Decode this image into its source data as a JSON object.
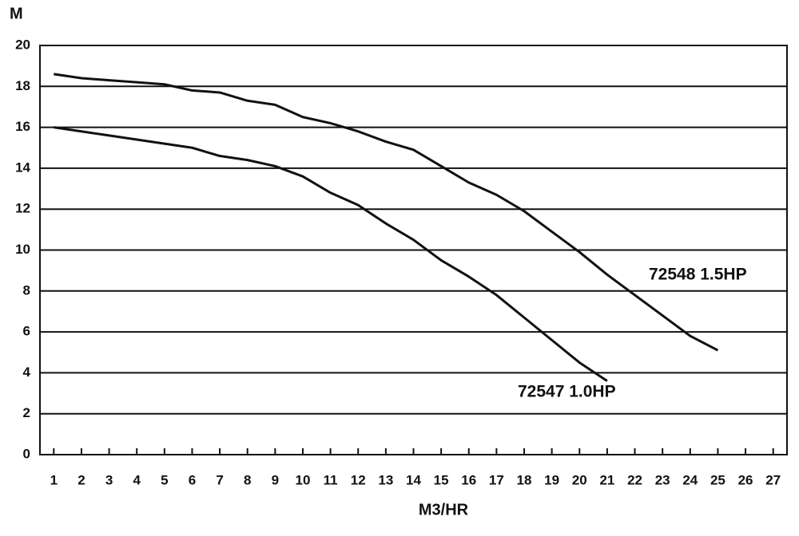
{
  "chart_data": {
    "type": "line",
    "y_label": "M",
    "x_label": "M3/HR",
    "x": [
      1,
      2,
      3,
      4,
      5,
      6,
      7,
      8,
      9,
      10,
      11,
      12,
      13,
      14,
      15,
      16,
      17,
      18,
      19,
      20,
      21,
      22,
      23,
      24,
      25
    ],
    "series": [
      {
        "name": "72548 1.5HP",
        "color": "#111111",
        "values": [
          18.6,
          18.4,
          18.3,
          18.2,
          18.1,
          17.8,
          17.7,
          17.3,
          17.1,
          16.5,
          16.2,
          15.8,
          15.3,
          14.9,
          14.1,
          13.3,
          12.7,
          11.9,
          10.9,
          9.9,
          8.8,
          7.8,
          6.8,
          5.8,
          5.1
        ]
      },
      {
        "name": "72547 1.0HP",
        "color": "#111111",
        "values": [
          16.0,
          15.8,
          15.6,
          15.4,
          15.2,
          15.0,
          14.6,
          14.4,
          14.1,
          13.6,
          12.8,
          12.2,
          11.3,
          10.5,
          9.5,
          8.7,
          7.8,
          6.7,
          5.6,
          4.5,
          3.6,
          null,
          null,
          null,
          null
        ]
      }
    ],
    "xlim": [
      0.5,
      27.5
    ],
    "ylim": [
      0,
      20
    ],
    "xticks": [
      1,
      2,
      3,
      4,
      5,
      6,
      7,
      8,
      9,
      10,
      11,
      12,
      13,
      14,
      15,
      16,
      17,
      18,
      19,
      20,
      21,
      22,
      23,
      24,
      25,
      26,
      27
    ],
    "yticks": [
      0,
      2,
      4,
      6,
      8,
      10,
      12,
      14,
      16,
      18,
      20
    ],
    "grid": true
  }
}
